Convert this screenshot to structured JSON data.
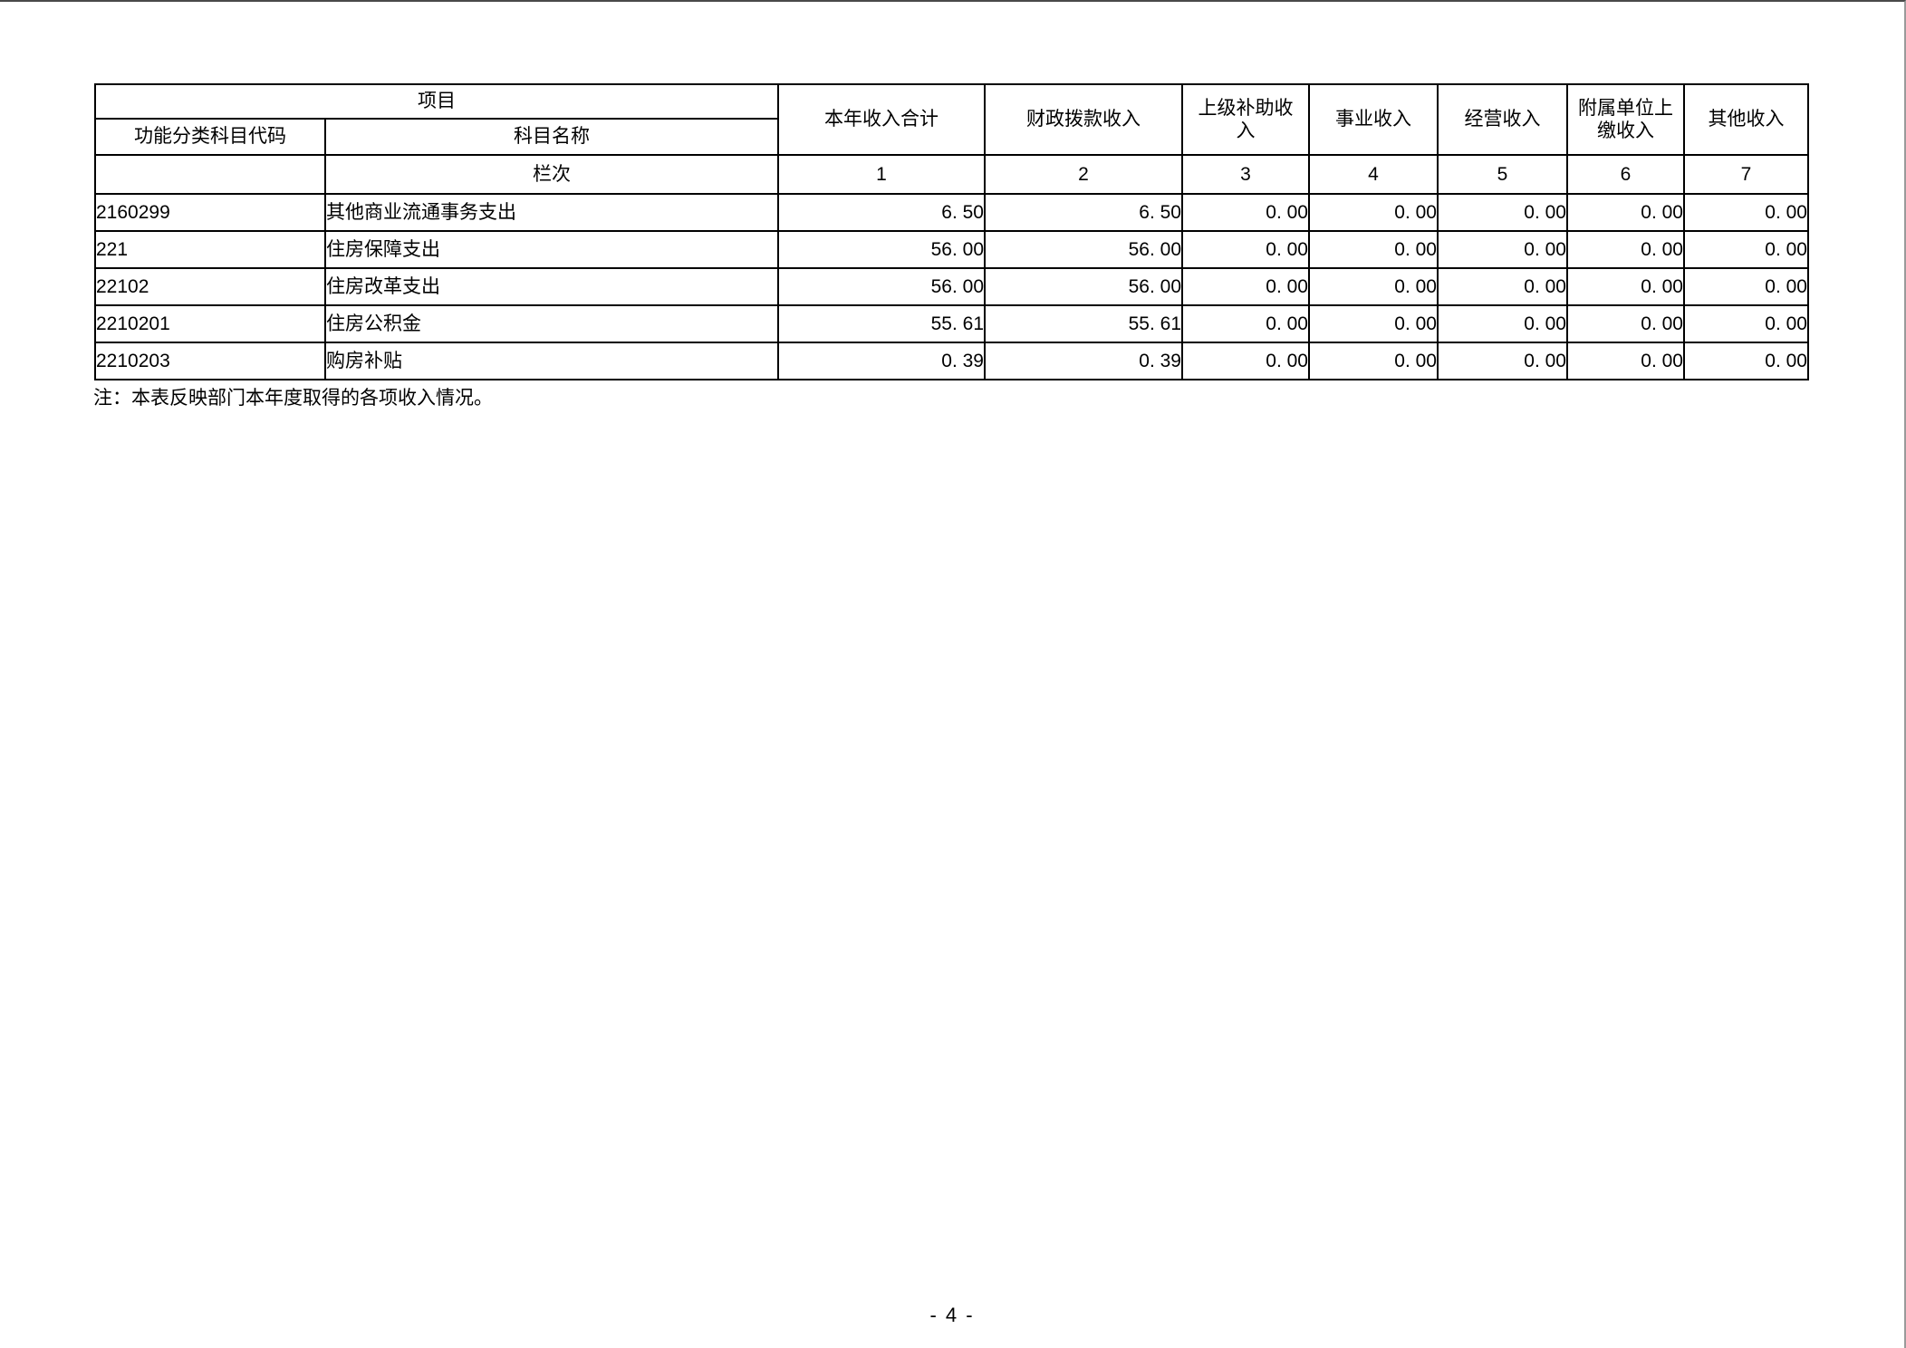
{
  "table": {
    "header": {
      "project": "项目",
      "code_label": "功能分类科目代码",
      "name_label": "科目名称",
      "lanci_label": "栏次",
      "columns": [
        "本年收入合计",
        "财政拨款收入",
        "上级补助收\n入",
        "事业收入",
        "经营收入",
        "附属单位上\n缴收入",
        "其他收入"
      ],
      "column_numbers": [
        "1",
        "2",
        "3",
        "4",
        "5",
        "6",
        "7"
      ]
    },
    "rows": [
      {
        "code": "2160299",
        "name": "其他商业流通事务支出",
        "indent": 2,
        "values": [
          "6. 50",
          "6. 50",
          "0. 00",
          "0. 00",
          "0. 00",
          "0. 00",
          "0. 00"
        ]
      },
      {
        "code": "221",
        "name": "住房保障支出",
        "indent": 0,
        "values": [
          "56. 00",
          "56. 00",
          "0. 00",
          "0. 00",
          "0. 00",
          "0. 00",
          "0. 00"
        ]
      },
      {
        "code": "22102",
        "name": "住房改革支出",
        "indent": 1,
        "values": [
          "56. 00",
          "56. 00",
          "0. 00",
          "0. 00",
          "0. 00",
          "0. 00",
          "0. 00"
        ]
      },
      {
        "code": "2210201",
        "name": "住房公积金",
        "indent": 2,
        "values": [
          "55. 61",
          "55. 61",
          "0. 00",
          "0. 00",
          "0. 00",
          "0. 00",
          "0. 00"
        ]
      },
      {
        "code": "2210203",
        "name": "购房补贴",
        "indent": 2,
        "values": [
          "0. 39",
          "0. 39",
          "0. 00",
          "0. 00",
          "0. 00",
          "0. 00",
          "0. 00"
        ]
      }
    ]
  },
  "note": "注：本表反映部门本年度取得的各项收入情况。",
  "footer": {
    "page_number": "- 4 -"
  }
}
